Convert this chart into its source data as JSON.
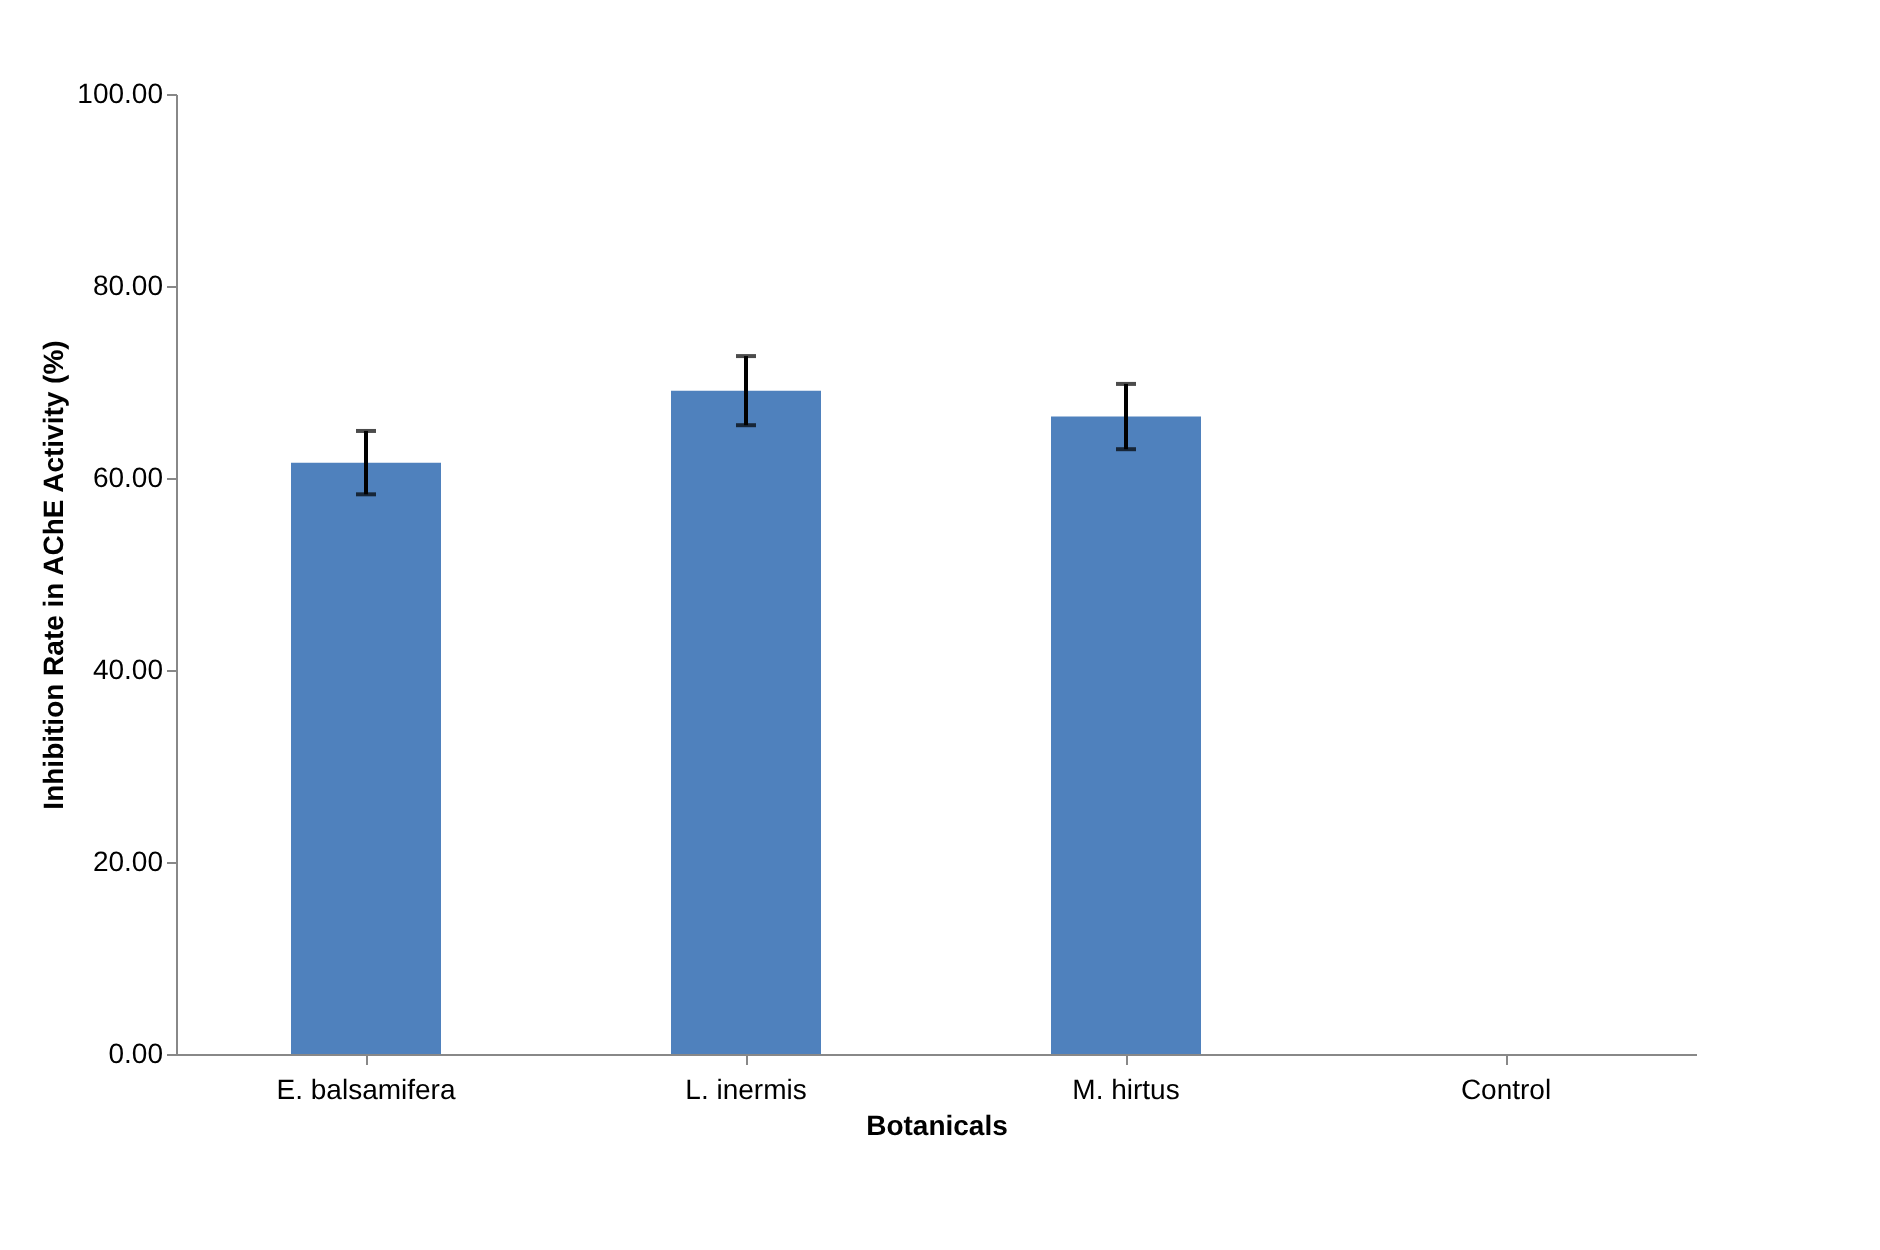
{
  "chart_data": {
    "type": "bar",
    "xlabel": "Botanicals",
    "ylabel": "Inhibition Rate in AChE Activity (%)",
    "categories": [
      "E. balsamifera",
      "L. inermis",
      "M. hirtus",
      "Control"
    ],
    "values": [
      61.6,
      69.1,
      66.4,
      0
    ],
    "errors": [
      3.3,
      3.6,
      3.4,
      null
    ],
    "color": "#4f81bd",
    "ylim": [
      0,
      100
    ],
    "yticks": [
      {
        "value": 0,
        "label": "0.00"
      },
      {
        "value": 20,
        "label": "20.00"
      },
      {
        "value": 40,
        "label": "40.00"
      },
      {
        "value": 60,
        "label": "60.00"
      },
      {
        "value": 80,
        "label": "80.00"
      },
      {
        "value": 100,
        "label": "100.00"
      }
    ],
    "grid": false
  }
}
